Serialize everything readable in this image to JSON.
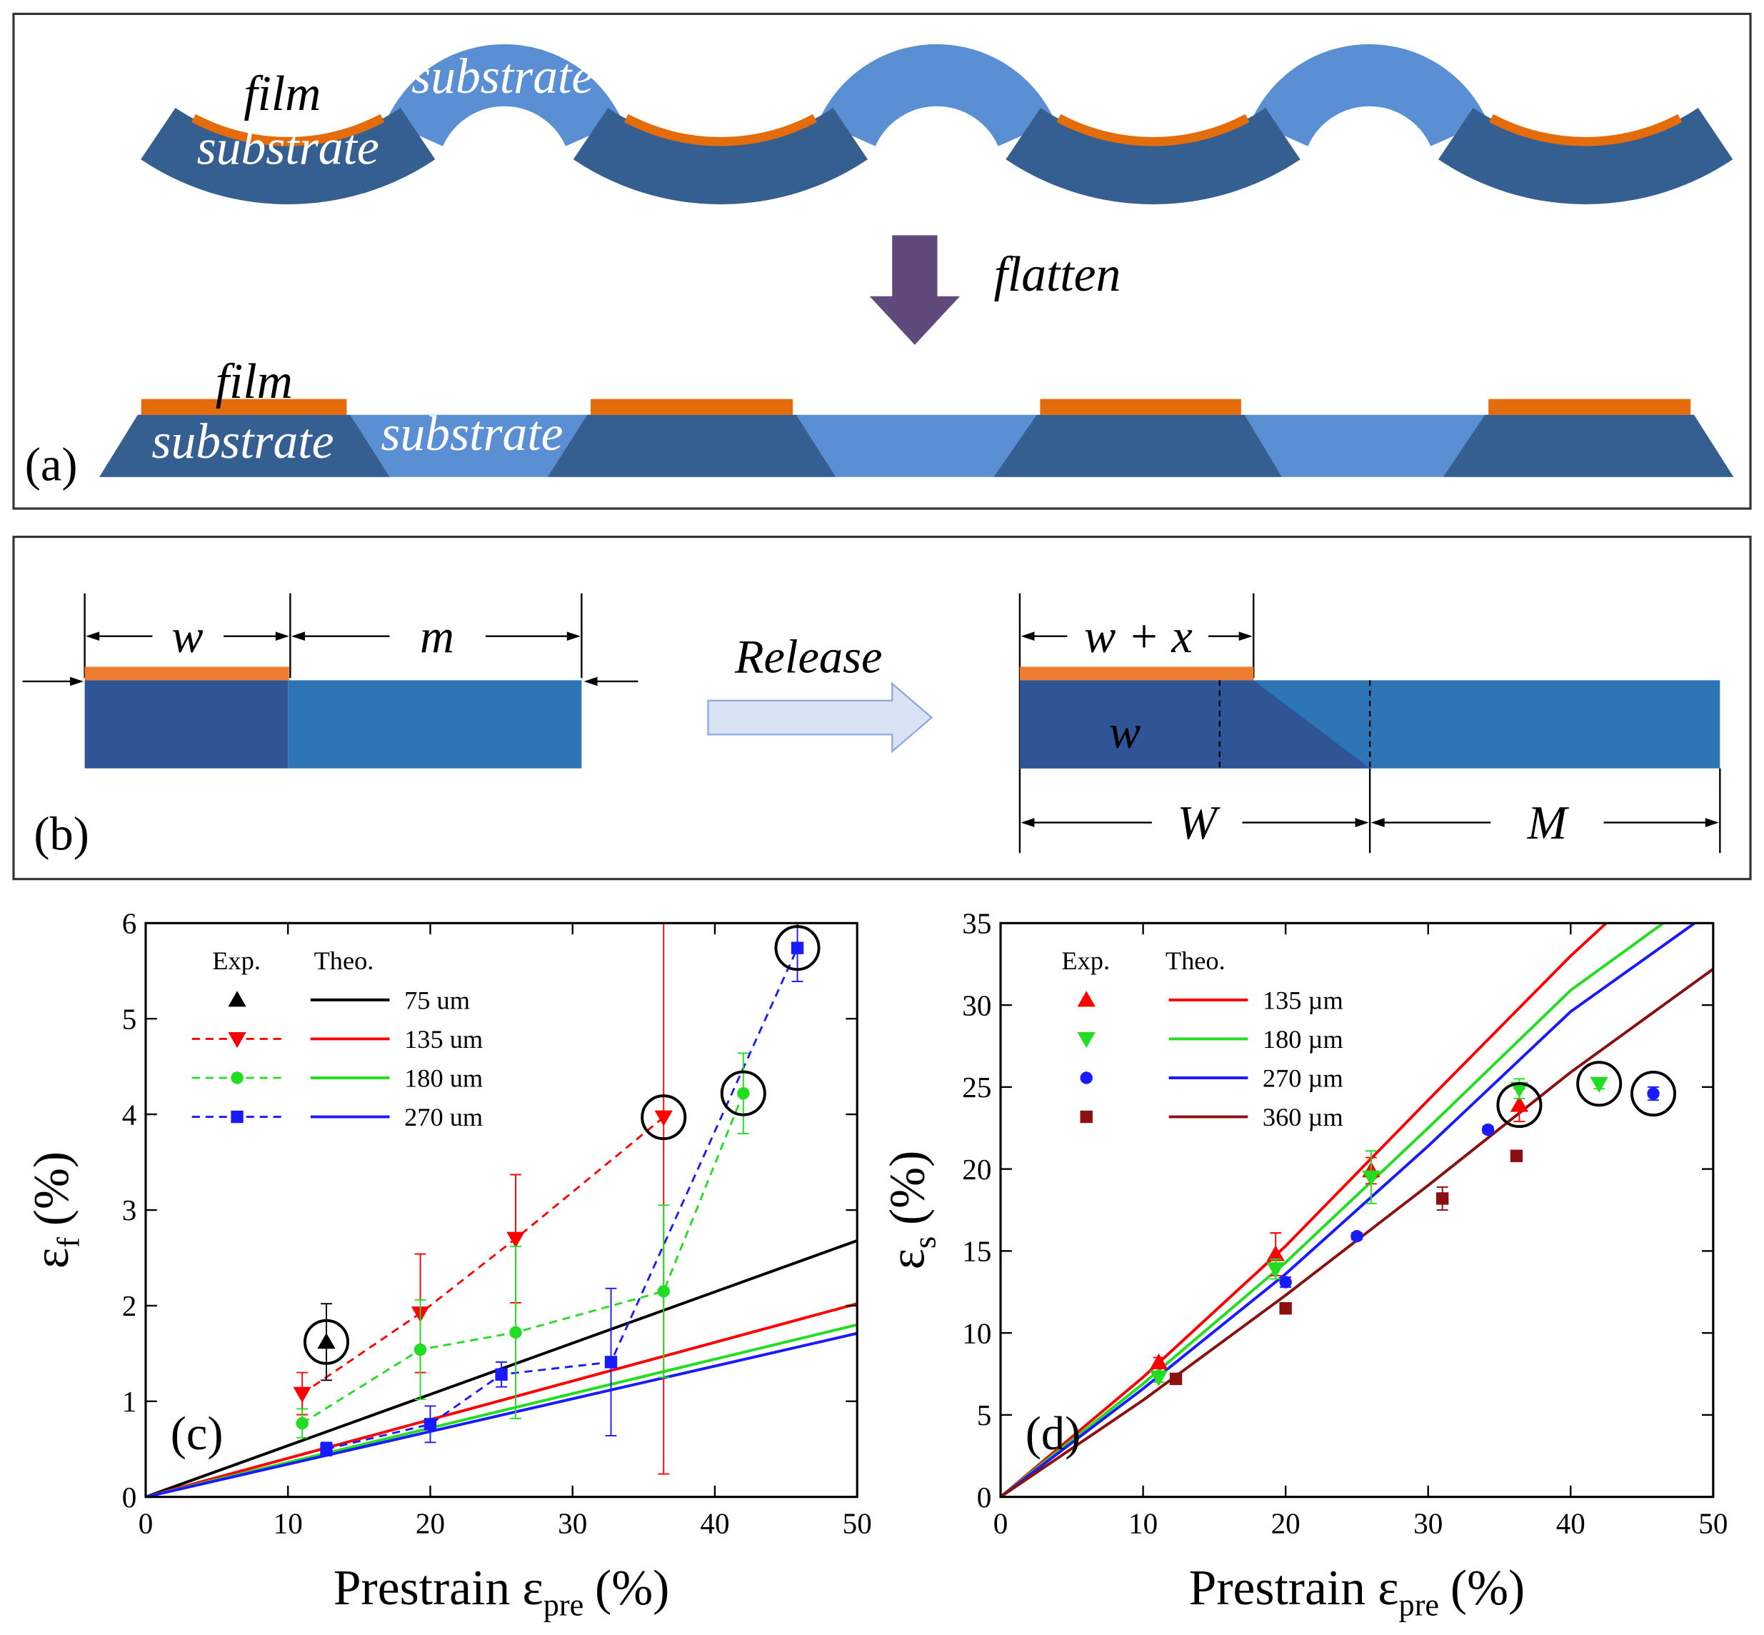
{
  "panel_a": {
    "label": "(a)",
    "top_film": "film",
    "top_substrate_film": "substrate",
    "top_substrate_free": "substrate",
    "arrow": "flatten",
    "bottom_film": "film",
    "bottom_substrate_film": "substrate",
    "bottom_substrate_free": "substrate"
  },
  "panel_b": {
    "label": "(b)",
    "left_w": "w",
    "left_m": "m",
    "arrow": "Release",
    "right_w_plus_x": "w + x",
    "right_w": "w",
    "right_W": "W",
    "right_M": "M"
  },
  "chart_data": [
    {
      "type": "scatter",
      "label": "(c)",
      "x_label": {
        "text": "Prestrain ε",
        "sub": "pre",
        "unit": "(%)"
      },
      "y_label": {
        "text": "ε",
        "sub": "f",
        "unit": "(%)"
      },
      "xlim": [
        0,
        50
      ],
      "xticks": [
        0,
        10,
        20,
        30,
        40,
        50
      ],
      "ylim": [
        0,
        6
      ],
      "yticks": [
        0,
        1,
        2,
        3,
        4,
        5,
        6
      ],
      "legend_headers": [
        "Exp.",
        "Theo."
      ],
      "series": [
        {
          "name": "75 um",
          "color": "#000000",
          "marker": "triangle-up",
          "dashed": false,
          "x": [
            12.7
          ],
          "values": [
            1.62
          ],
          "errors": [
            0.4
          ],
          "circled": 0,
          "theory_x": [
            0,
            50
          ],
          "theory": [
            0,
            2.68
          ]
        },
        {
          "name": "135 um",
          "color": "#ff0000",
          "marker": "triangle-down",
          "dashed": true,
          "x": [
            11,
            19.3,
            26,
            36.4
          ],
          "values": [
            1.08,
            1.92,
            2.7,
            3.97
          ],
          "errors": [
            0.22,
            0.62,
            0.67,
            3.73
          ],
          "circled": 3,
          "theory_x": [
            0,
            50
          ],
          "theory": [
            0,
            2.02
          ]
        },
        {
          "name": "180 um",
          "color": "#22dd22",
          "marker": "circle",
          "dashed": true,
          "x": [
            11,
            19.3,
            26,
            36.4,
            42
          ],
          "values": [
            0.77,
            1.54,
            1.72,
            2.15,
            4.22
          ],
          "errors": [
            0.15,
            0.52,
            0.9,
            0.9,
            0.42
          ],
          "circled": 4,
          "theory_x": [
            0,
            50
          ],
          "theory": [
            0,
            1.8
          ]
        },
        {
          "name": "270 um",
          "color": "#1a1aff",
          "marker": "square",
          "dashed": true,
          "x": [
            12.7,
            20,
            25,
            32.7,
            45.8
          ],
          "values": [
            0.5,
            0.76,
            1.28,
            1.41,
            5.74
          ],
          "errors": [
            0.07,
            0.19,
            0.13,
            0.77,
            0.35
          ],
          "circled": 4,
          "theory_x": [
            0,
            50
          ],
          "theory": [
            0,
            1.71
          ]
        }
      ]
    },
    {
      "type": "scatter",
      "label": "(d)",
      "x_label": {
        "text": "Prestrain ε",
        "sub": "pre",
        "unit": "(%)"
      },
      "y_label": {
        "text": "ε",
        "sub": "s",
        "unit": "(%)"
      },
      "xlim": [
        0,
        50
      ],
      "xticks": [
        0,
        10,
        20,
        30,
        40,
        50
      ],
      "ylim": [
        0,
        35
      ],
      "yticks": [
        0,
        5,
        10,
        15,
        20,
        25,
        30,
        35
      ],
      "legend_headers": [
        "Exp.",
        "Theo."
      ],
      "series": [
        {
          "name": "135 µm",
          "color": "#ff0000",
          "marker": "triangle-up",
          "dashed": false,
          "x": [
            11.1,
            19.3,
            26,
            36.4
          ],
          "values": [
            8.2,
            14.8,
            19.9,
            23.9
          ],
          "errors": [
            0.3,
            1.3,
            0.8,
            1.0
          ],
          "circled": 3,
          "theory_x": [
            0,
            10,
            20,
            30,
            40,
            42.5
          ],
          "theory": [
            0,
            7.3,
            15.3,
            24.2,
            33,
            35
          ]
        },
        {
          "name": "180 µm",
          "color": "#22dd22",
          "marker": "triangle-down",
          "dashed": false,
          "x": [
            11.1,
            19.3,
            26,
            36.4,
            42
          ],
          "values": [
            7.3,
            13.9,
            19.5,
            24.9,
            25.2
          ],
          "errors": [
            0.3,
            0.6,
            1.6,
            0.6,
            0.3
          ],
          "circled": 4,
          "theory_x": [
            0,
            10,
            20,
            30,
            40,
            46.5
          ],
          "theory": [
            0,
            6.9,
            14.3,
            22.5,
            30.9,
            35
          ]
        },
        {
          "name": "270 µm",
          "color": "#1a1aff",
          "marker": "circle",
          "dashed": false,
          "x": [
            20,
            25,
            34.2,
            45.8
          ],
          "values": [
            13.1,
            15.9,
            22.4,
            24.6
          ],
          "errors": [
            0.3,
            0.2,
            0.2,
            0.4
          ],
          "circled": 3,
          "theory_x": [
            0,
            10,
            20,
            30,
            40,
            48.7
          ],
          "theory": [
            0,
            6.6,
            13.6,
            21.4,
            29.6,
            35
          ]
        },
        {
          "name": "360 µm",
          "color": "#8b1010",
          "marker": "square",
          "dashed": false,
          "x": [
            12.3,
            20,
            31,
            36.2
          ],
          "values": [
            7.2,
            11.5,
            18.2,
            20.8
          ],
          "errors": [
            0.2,
            0.2,
            0.7,
            0.2
          ],
          "theory_x": [
            0,
            10,
            20,
            30,
            40,
            50
          ],
          "theory": [
            0,
            5.9,
            12.3,
            19,
            25.9,
            32.2
          ]
        }
      ]
    }
  ]
}
